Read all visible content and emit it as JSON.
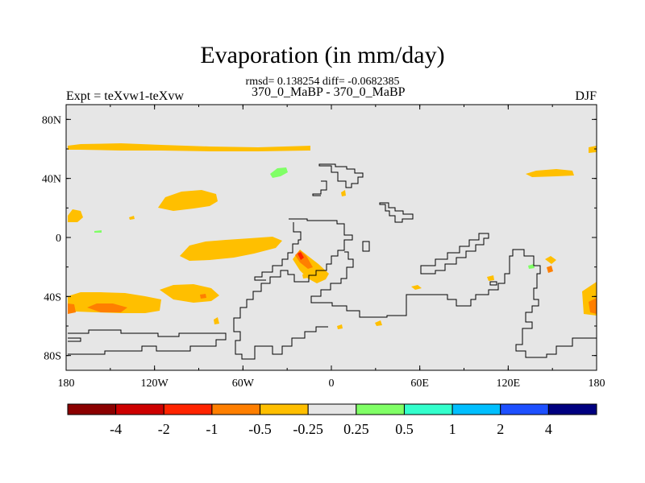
{
  "chart_data": {
    "type": "heatmap",
    "title": "Evaporation (in mm/day)",
    "subtitle": "rmsd= 0.138254 diff= -0.0682385",
    "left_label": "Expt = teXvw1-teXvw",
    "center_label": "370_0_MaBP - 370_0_MaBP",
    "right_label": "DJF",
    "x_ticks": [
      "180",
      "120W",
      "60W",
      "0",
      "60E",
      "120E",
      "180"
    ],
    "y_ticks": [
      "80N",
      "40N",
      "0",
      "40S",
      "80S"
    ],
    "lon_range": [
      -180,
      180
    ],
    "lat_range": [
      -90,
      90
    ],
    "background_class": "-0.25 to 0.25",
    "colorbar": {
      "labels": [
        "-4",
        "-2",
        "-1",
        "-0.5",
        "-0.25",
        "0.25",
        "0.5",
        "1",
        "2",
        "4"
      ],
      "colors": [
        "#8b0000",
        "#cd0000",
        "#ff2400",
        "#ff7f00",
        "#ffbf00",
        "#e6e6e6",
        "#80ff66",
        "#33ffcc",
        "#00bfff",
        "#1e50ff",
        "#000080"
      ]
    },
    "color_map": {
      "neutral": "#e6e6e6",
      "minus_0_5_to_minus_0_25": "#ffbf00",
      "minus_1_to_minus_0_5": "#ff7f00",
      "minus_2_to_minus_1": "#ff2400",
      "plus_0_25_to_plus_0_5": "#80ff66"
    }
  }
}
